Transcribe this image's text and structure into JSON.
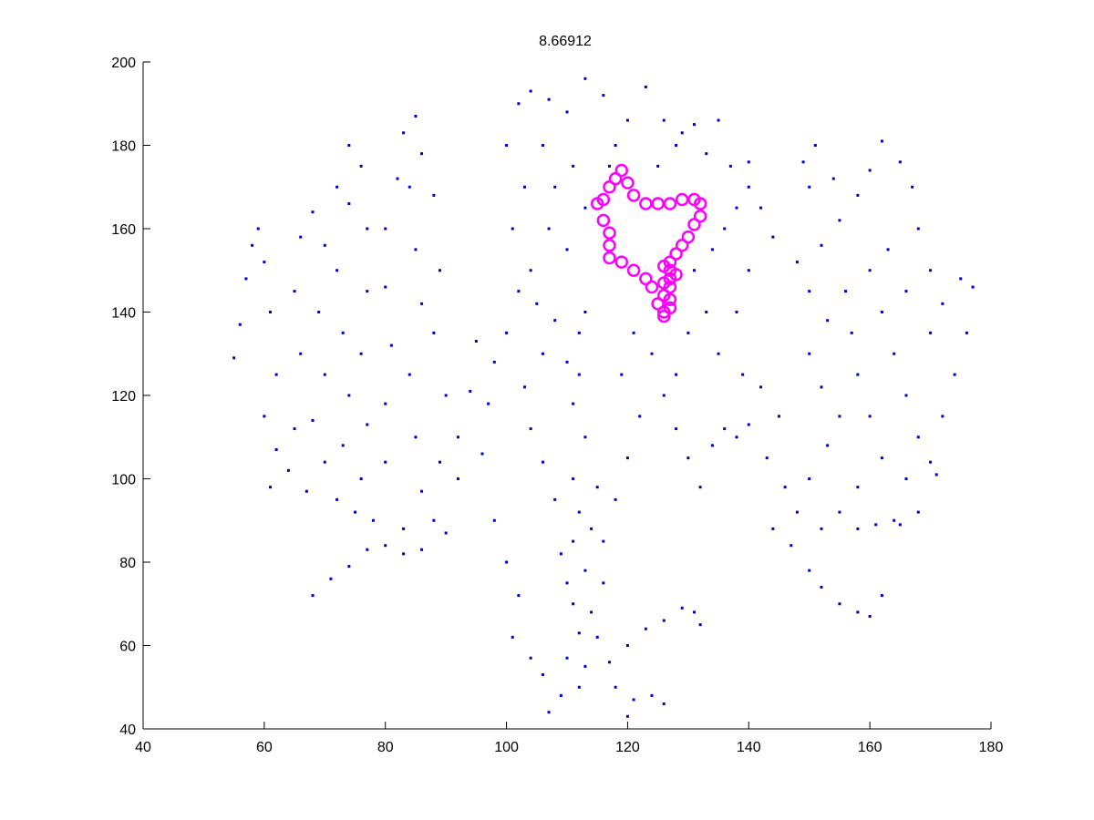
{
  "chart_data": {
    "type": "scatter",
    "title": "8.66912",
    "xlim": [
      40,
      180
    ],
    "xticks": [
      40,
      60,
      80,
      100,
      120,
      140,
      160,
      180
    ],
    "ylim": [
      40,
      200
    ],
    "yticks": [
      40,
      60,
      80,
      100,
      120,
      140,
      160,
      180,
      200
    ],
    "series": [
      {
        "color": "#0000cc",
        "marker": "dot",
        "x": [
          55,
          56,
          57,
          58,
          59,
          60,
          61,
          62,
          60,
          62,
          61,
          64,
          65,
          66,
          65,
          66,
          68,
          70,
          69,
          70,
          68,
          70,
          67,
          72,
          73,
          74,
          73,
          72,
          74,
          72,
          74,
          76,
          77,
          77,
          76,
          77,
          76,
          75,
          78,
          80,
          80,
          81,
          80,
          80,
          82,
          83,
          85,
          84,
          85,
          86,
          84,
          85,
          86,
          83,
          88,
          89,
          90,
          88,
          89,
          88,
          86,
          68,
          71,
          74,
          77,
          80,
          83,
          86,
          90,
          92,
          92,
          94,
          95,
          100,
          102,
          104,
          101,
          103,
          100,
          102,
          104,
          107,
          110,
          113,
          116,
          106,
          108,
          111,
          113,
          110,
          107,
          105,
          108,
          110,
          112,
          113,
          112,
          111,
          113,
          111,
          112,
          111,
          113,
          111,
          112,
          110,
          112,
          107,
          109,
          113,
          114,
          115,
          116,
          110,
          109,
          114,
          115,
          108,
          106,
          104,
          103,
          106,
          98,
          97,
          96,
          98,
          100,
          102,
          101,
          104,
          106,
          117,
          118,
          120,
          121,
          124,
          126,
          120,
          123,
          126,
          129,
          131,
          132,
          116,
          118,
          120,
          122,
          119,
          121,
          124,
          126,
          128,
          130,
          132,
          134,
          136,
          138,
          140,
          128,
          130,
          133,
          131,
          134,
          136,
          138,
          140,
          137,
          133,
          129,
          126,
          123,
          120,
          118,
          117,
          125,
          128,
          131,
          135,
          140,
          142,
          144,
          140,
          138,
          135,
          139,
          142,
          145,
          143,
          146,
          148,
          144,
          147,
          150,
          152,
          155,
          158,
          160,
          162,
          152,
          155,
          158,
          161,
          164,
          165,
          150,
          153,
          155,
          152,
          150,
          153,
          150,
          148,
          152,
          155,
          150,
          149,
          151,
          154,
          158,
          160,
          162,
          165,
          167,
          168,
          170,
          172,
          175,
          177,
          176,
          174,
          172,
          170,
          171,
          168,
          166,
          164,
          162,
          160,
          157,
          158,
          160,
          162,
          158,
          166,
          168,
          156,
          163,
          166,
          170
        ],
        "values": [
          129,
          137,
          148,
          156,
          160,
          152,
          140,
          125,
          115,
          107,
          98,
          102,
          112,
          130,
          145,
          158,
          164,
          156,
          140,
          125,
          114,
          104,
          97,
          95,
          108,
          120,
          135,
          150,
          166,
          170,
          180,
          175,
          160,
          145,
          130,
          113,
          100,
          92,
          90,
          104,
          118,
          132,
          146,
          160,
          172,
          183,
          187,
          170,
          155,
          142,
          125,
          110,
          97,
          88,
          90,
          104,
          120,
          135,
          150,
          168,
          178,
          72,
          76,
          79,
          83,
          84,
          82,
          83,
          87,
          100,
          110,
          121,
          133,
          135,
          145,
          150,
          160,
          170,
          180,
          190,
          193,
          191,
          188,
          196,
          192,
          180,
          170,
          175,
          165,
          155,
          160,
          142,
          138,
          128,
          135,
          140,
          125,
          118,
          110,
          100,
          92,
          85,
          78,
          70,
          63,
          57,
          50,
          44,
          48,
          55,
          68,
          62,
          75,
          75,
          82,
          88,
          98,
          95,
          104,
          112,
          122,
          130,
          128,
          118,
          106,
          90,
          80,
          72,
          62,
          57,
          53,
          56,
          50,
          43,
          47,
          48,
          46,
          60,
          64,
          66,
          69,
          68,
          65,
          85,
          95,
          105,
          115,
          125,
          135,
          130,
          120,
          112,
          105,
          98,
          108,
          112,
          110,
          113,
          125,
          135,
          140,
          150,
          155,
          160,
          165,
          170,
          175,
          178,
          183,
          186,
          194,
          186,
          180,
          175,
          175,
          180,
          185,
          186,
          176,
          165,
          158,
          150,
          140,
          130,
          125,
          122,
          115,
          105,
          98,
          92,
          88,
          84,
          78,
          74,
          70,
          68,
          67,
          72,
          88,
          92,
          88,
          89,
          90,
          89,
          100,
          108,
          115,
          122,
          130,
          138,
          145,
          152,
          156,
          162,
          170,
          176,
          180,
          172,
          168,
          174,
          181,
          176,
          170,
          160,
          150,
          142,
          148,
          146,
          135,
          125,
          115,
          104,
          101,
          110,
          120,
          130,
          140,
          150,
          135,
          125,
          115,
          105,
          98,
          100,
          92,
          145,
          155,
          145,
          135
        ]
      },
      {
        "color": "#ff00ff",
        "marker": "circle",
        "x": [
          116,
          117,
          118,
          119,
          120,
          121,
          123,
          125,
          127,
          129,
          131,
          132,
          132,
          131,
          130,
          129,
          128,
          127,
          126,
          127,
          128,
          127,
          126,
          127,
          126,
          127,
          127,
          126,
          126,
          125,
          124,
          123,
          121,
          119,
          117,
          117,
          117,
          116,
          115
        ],
        "values": [
          167,
          170,
          172,
          174,
          171,
          168,
          166,
          166,
          166,
          167,
          167,
          166,
          163,
          161,
          158,
          156,
          154,
          152,
          151,
          150,
          149,
          148,
          147,
          146,
          144,
          143,
          141,
          140,
          139,
          142,
          146,
          148,
          150,
          152,
          153,
          156,
          159,
          162,
          166
        ]
      }
    ]
  }
}
